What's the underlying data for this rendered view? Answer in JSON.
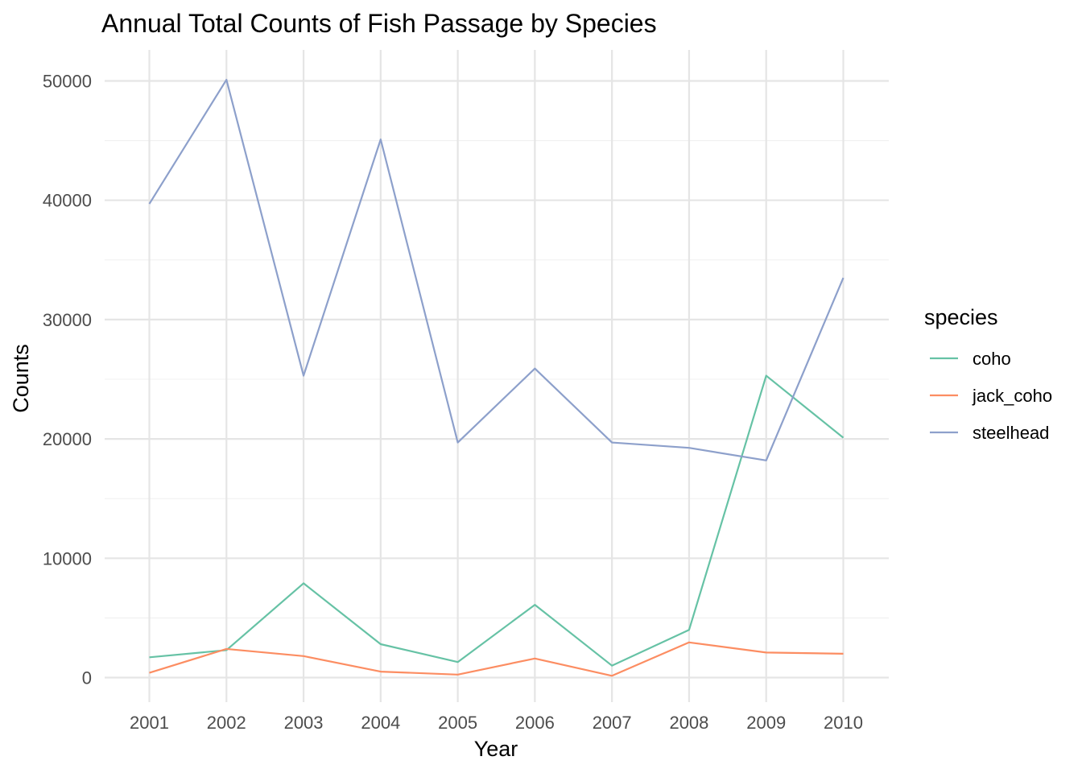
{
  "chart_data": {
    "type": "line",
    "title": "Annual Total Counts of Fish Passage by Species",
    "xlabel": "Year",
    "ylabel": "Counts",
    "x": [
      2001,
      2002,
      2003,
      2004,
      2005,
      2006,
      2007,
      2008,
      2009,
      2010
    ],
    "x_tick_labels": [
      "2001",
      "2002",
      "2003",
      "2004",
      "2005",
      "2006",
      "2007",
      "2008",
      "2009",
      "2010"
    ],
    "ylim": [
      0,
      50000
    ],
    "y_ticks": [
      0,
      10000,
      20000,
      30000,
      40000,
      50000
    ],
    "y_tick_labels": [
      "0",
      "10000",
      "20000",
      "30000",
      "40000",
      "50000"
    ],
    "grid": true,
    "legend": {
      "title": "species",
      "position": "right"
    },
    "series": [
      {
        "name": "coho",
        "color": "#66c2a5",
        "values": [
          1700,
          2300,
          7900,
          2800,
          1300,
          6100,
          1000,
          4000,
          25300,
          20100
        ]
      },
      {
        "name": "jack_coho",
        "color": "#fc8d62",
        "values": [
          400,
          2400,
          1800,
          500,
          250,
          1600,
          150,
          2950,
          2100,
          2000
        ]
      },
      {
        "name": "steelhead",
        "color": "#8da0cb",
        "values": [
          39700,
          50100,
          25300,
          45100,
          19700,
          25900,
          19700,
          19250,
          18200,
          33500
        ]
      }
    ]
  }
}
